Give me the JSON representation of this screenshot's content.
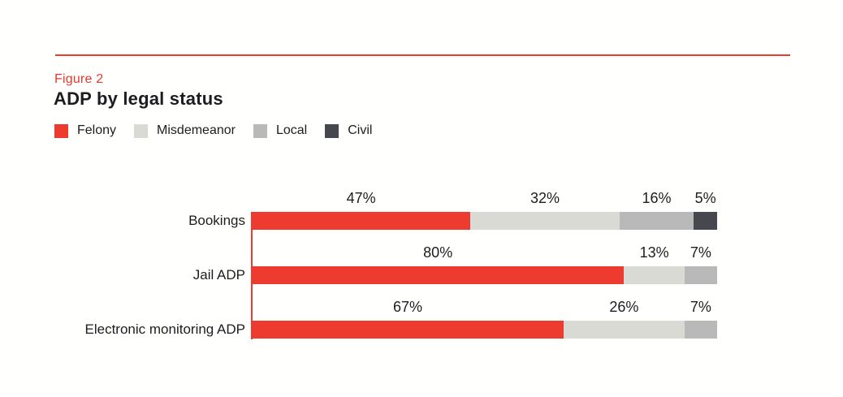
{
  "header": {
    "figure_label": "Figure 2",
    "title": "ADP by legal status"
  },
  "colors": {
    "accent_red": "#ee3b30",
    "light_gray": "#dadad5",
    "mid_gray": "#b9b9b9",
    "dark_slate": "#474750",
    "text_dark": "#1d1d21"
  },
  "legend": [
    {
      "label": "Felony",
      "color": "#ee3b30"
    },
    {
      "label": "Misdemeanor",
      "color": "#dadad5"
    },
    {
      "label": "Local",
      "color": "#b9b9b9"
    },
    {
      "label": "Civil",
      "color": "#474750"
    }
  ],
  "chart_data": {
    "type": "bar",
    "orientation": "horizontal",
    "stacked": true,
    "title": "ADP by legal status",
    "figure_label": "Figure 2",
    "categories": [
      "Bookings",
      "Jail ADP",
      "Electronic monitoring ADP"
    ],
    "series": [
      {
        "name": "Felony",
        "color": "#ee3b30",
        "values": [
          47,
          80,
          67
        ]
      },
      {
        "name": "Misdemeanor",
        "color": "#dadad5",
        "values": [
          32,
          13,
          26
        ]
      },
      {
        "name": "Local",
        "color": "#b9b9b9",
        "values": [
          16,
          7,
          7
        ]
      },
      {
        "name": "Civil",
        "color": "#474750",
        "values": [
          5,
          0,
          0
        ]
      }
    ],
    "value_suffix": "%",
    "xlim": [
      0,
      100
    ],
    "data_labels": "above-segments",
    "legend_position": "top-left",
    "grid": false
  }
}
